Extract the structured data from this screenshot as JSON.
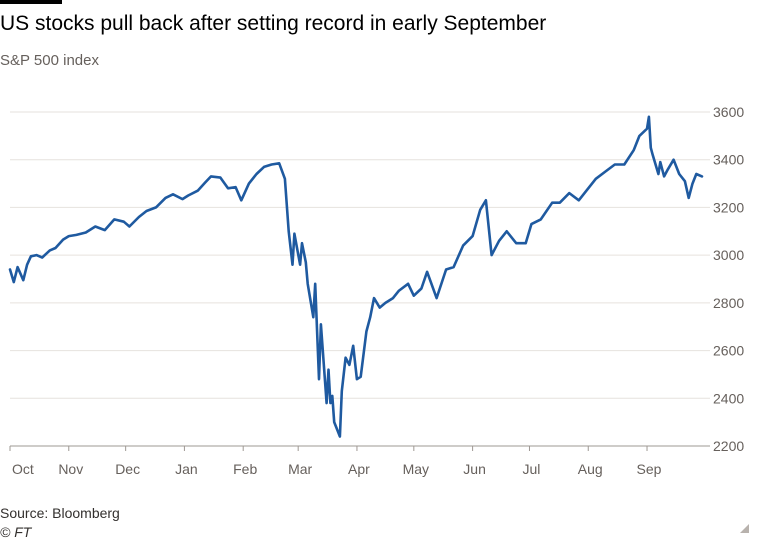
{
  "header": {
    "title": "US stocks pull back after setting record in early September",
    "subtitle": "S&P 500 index"
  },
  "footer": {
    "source": "Source: Bloomberg",
    "copyright": "© FT"
  },
  "colors": {
    "line": "#1f5aa0",
    "grid": "#e6e2de",
    "axis": "#66605c"
  },
  "chart_data": {
    "type": "line",
    "title": "US stocks pull back after setting record in early September",
    "subtitle": "S&P 500 index",
    "xlabel": "",
    "ylabel": "",
    "x_tick_labels": [
      "Oct",
      "Nov",
      "Dec",
      "Jan",
      "Feb",
      "Mar",
      "Apr",
      "May",
      "Jun",
      "Jul",
      "Aug",
      "Sep"
    ],
    "y_ticks": [
      2200,
      2400,
      2600,
      2800,
      3000,
      3200,
      3400,
      3600
    ],
    "ylim": [
      2200,
      3600
    ],
    "xlim": [
      "2019-10-01",
      "2020-09-30"
    ],
    "grid": true,
    "y_axis_position": "right",
    "series": [
      {
        "x": [
          "2019-10-01",
          "2019-10-03",
          "2019-10-05",
          "2019-10-08",
          "2019-10-10",
          "2019-10-12",
          "2019-10-15",
          "2019-10-18",
          "2019-10-22",
          "2019-10-25",
          "2019-10-29",
          "2019-11-01",
          "2019-11-05",
          "2019-11-10",
          "2019-11-15",
          "2019-11-20",
          "2019-11-25",
          "2019-11-30",
          "2019-12-03",
          "2019-12-08",
          "2019-12-12",
          "2019-12-17",
          "2019-12-22",
          "2019-12-26",
          "2019-12-31",
          "2020-01-03",
          "2020-01-08",
          "2020-01-12",
          "2020-01-15",
          "2020-01-20",
          "2020-01-24",
          "2020-01-28",
          "2020-01-31",
          "2020-02-04",
          "2020-02-08",
          "2020-02-12",
          "2020-02-16",
          "2020-02-20",
          "2020-02-23",
          "2020-02-25",
          "2020-02-27",
          "2020-02-28",
          "2020-03-02",
          "2020-03-03",
          "2020-03-05",
          "2020-03-06",
          "2020-03-09",
          "2020-03-10",
          "2020-03-12",
          "2020-03-13",
          "2020-03-16",
          "2020-03-17",
          "2020-03-18",
          "2020-03-19",
          "2020-03-20",
          "2020-03-23",
          "2020-03-24",
          "2020-03-26",
          "2020-03-28",
          "2020-03-30",
          "2020-04-01",
          "2020-04-03",
          "2020-04-06",
          "2020-04-08",
          "2020-04-10",
          "2020-04-13",
          "2020-04-16",
          "2020-04-20",
          "2020-04-23",
          "2020-04-28",
          "2020-05-01",
          "2020-05-05",
          "2020-05-08",
          "2020-05-13",
          "2020-05-18",
          "2020-05-22",
          "2020-05-27",
          "2020-06-01",
          "2020-06-05",
          "2020-06-08",
          "2020-06-11",
          "2020-06-15",
          "2020-06-19",
          "2020-06-24",
          "2020-06-29",
          "2020-07-02",
          "2020-07-07",
          "2020-07-13",
          "2020-07-17",
          "2020-07-22",
          "2020-07-27",
          "2020-07-31",
          "2020-08-05",
          "2020-08-10",
          "2020-08-15",
          "2020-08-20",
          "2020-08-25",
          "2020-08-28",
          "2020-09-01",
          "2020-09-02",
          "2020-09-03",
          "2020-09-04",
          "2020-09-07",
          "2020-09-08",
          "2020-09-10",
          "2020-09-12",
          "2020-09-15",
          "2020-09-18",
          "2020-09-21",
          "2020-09-23",
          "2020-09-25",
          "2020-09-27",
          "2020-09-30"
        ],
        "values": [
          2940,
          2887,
          2950,
          2895,
          2960,
          2995,
          3000,
          2990,
          3020,
          3030,
          3065,
          3080,
          3085,
          3095,
          3120,
          3105,
          3150,
          3140,
          3120,
          3160,
          3185,
          3200,
          3240,
          3255,
          3235,
          3250,
          3270,
          3305,
          3330,
          3325,
          3280,
          3285,
          3230,
          3300,
          3340,
          3370,
          3380,
          3385,
          3320,
          3100,
          2960,
          3090,
          2960,
          3050,
          2970,
          2880,
          2740,
          2880,
          2480,
          2710,
          2380,
          2520,
          2380,
          2410,
          2300,
          2240,
          2430,
          2570,
          2540,
          2620,
          2480,
          2490,
          2680,
          2740,
          2820,
          2780,
          2800,
          2820,
          2850,
          2880,
          2830,
          2860,
          2930,
          2820,
          2940,
          2950,
          3040,
          3080,
          3190,
          3230,
          3000,
          3060,
          3100,
          3050,
          3050,
          3130,
          3150,
          3220,
          3220,
          3260,
          3230,
          3270,
          3320,
          3350,
          3380,
          3380,
          3440,
          3500,
          3530,
          3580,
          3450,
          3420,
          3340,
          3390,
          3330,
          3360,
          3400,
          3340,
          3310,
          3240,
          3300,
          3340,
          3330
        ]
      }
    ]
  }
}
